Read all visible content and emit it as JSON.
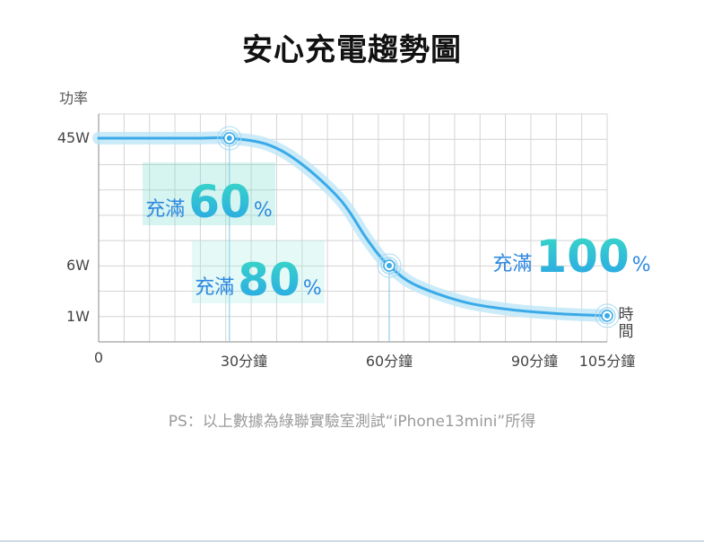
{
  "title": "安心充電趨勢圖",
  "footnote": "PS：以上數據為綠聯實驗室測試“iPhone13mini”所得",
  "callouts": [
    {
      "prefix": "充滿",
      "value": "60",
      "suffix": "%"
    },
    {
      "prefix": "充滿",
      "value": "80",
      "suffix": "%"
    },
    {
      "prefix": "充滿",
      "value": "100",
      "suffix": "%"
    }
  ],
  "chart_data": {
    "type": "line",
    "title": "安心充電趨勢圖",
    "ylabel": "功率",
    "xlabel": "時間",
    "x_ticks": [
      {
        "value": 0,
        "label": "0"
      },
      {
        "value": 30,
        "label": "30分鐘"
      },
      {
        "value": 60,
        "label": "60分鐘"
      },
      {
        "value": 90,
        "label": "90分鐘"
      },
      {
        "value": 105,
        "label": "105分鐘"
      }
    ],
    "y_ticks": [
      {
        "value": 45,
        "label": "45W"
      },
      {
        "value": 6,
        "label": "6W"
      },
      {
        "value": 1,
        "label": "1W"
      }
    ],
    "xlim": [
      0,
      105
    ],
    "grid": true,
    "series": [
      {
        "x": [
          0,
          10,
          20,
          27,
          35,
          42,
          50,
          55,
          58,
          60,
          65,
          75,
          85,
          95,
          105
        ],
        "y": [
          45,
          45,
          45,
          45,
          43,
          37,
          26,
          15,
          9,
          6,
          4.2,
          2.5,
          1.7,
          1.3,
          1.1
        ]
      }
    ],
    "markers": [
      {
        "x": 27,
        "y": 45,
        "callout": 0
      },
      {
        "x": 60,
        "y": 6,
        "callout": 1
      },
      {
        "x": 105,
        "y": 1.1,
        "callout": 2
      }
    ],
    "colors": {
      "line": "#3aaae8",
      "glow": "#bfe6f7",
      "grid": "#d4d4d4"
    }
  }
}
